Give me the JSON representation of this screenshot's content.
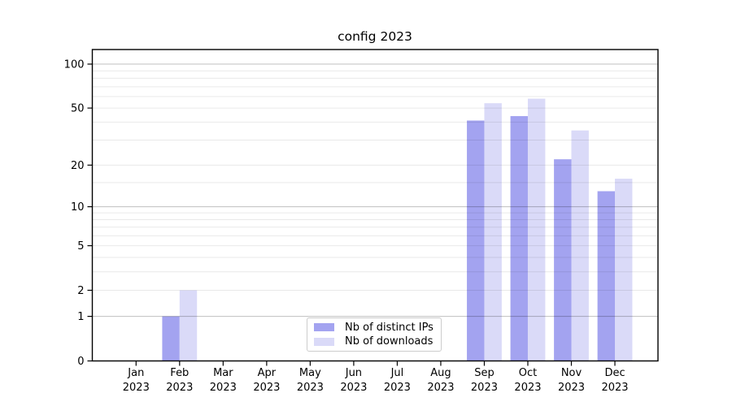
{
  "chart_data": {
    "type": "bar",
    "title": "config 2023",
    "categories": [
      "Jan",
      "Feb",
      "Mar",
      "Apr",
      "May",
      "Jun",
      "Jul",
      "Aug",
      "Sep",
      "Oct",
      "Nov",
      "Dec"
    ],
    "category_year": "2023",
    "series": [
      {
        "name": "Nb of distinct IPs",
        "color": "#a3a3f0",
        "values": [
          0,
          1,
          0,
          0,
          0,
          0,
          0,
          0,
          41,
          44,
          22,
          13
        ]
      },
      {
        "name": "Nb of downloads",
        "color": "#dadaf8",
        "values": [
          0,
          2,
          0,
          0,
          0,
          0,
          0,
          0,
          54,
          58,
          35,
          16
        ]
      }
    ],
    "yscale": "log1p",
    "ylim": [
      0,
      125.7
    ],
    "yticks": [
      0,
      1,
      2,
      5,
      10,
      20,
      50,
      100
    ],
    "ytick_labels": [
      "0",
      "1",
      "2",
      "5",
      "10",
      "20",
      "50",
      "100"
    ],
    "major_gridlines": [
      1,
      10,
      100
    ],
    "minor_gridlines": [
      2,
      3,
      4,
      5,
      6,
      7,
      8,
      9,
      15,
      20,
      30,
      40,
      50,
      60,
      70,
      80,
      90
    ],
    "grid_color_major": "rgba(0,0,0,0.22)",
    "grid_color_minor": "rgba(0,0,0,0.085)",
    "axis_color": "#000000",
    "legend_position": "lower center",
    "grid": "on"
  }
}
